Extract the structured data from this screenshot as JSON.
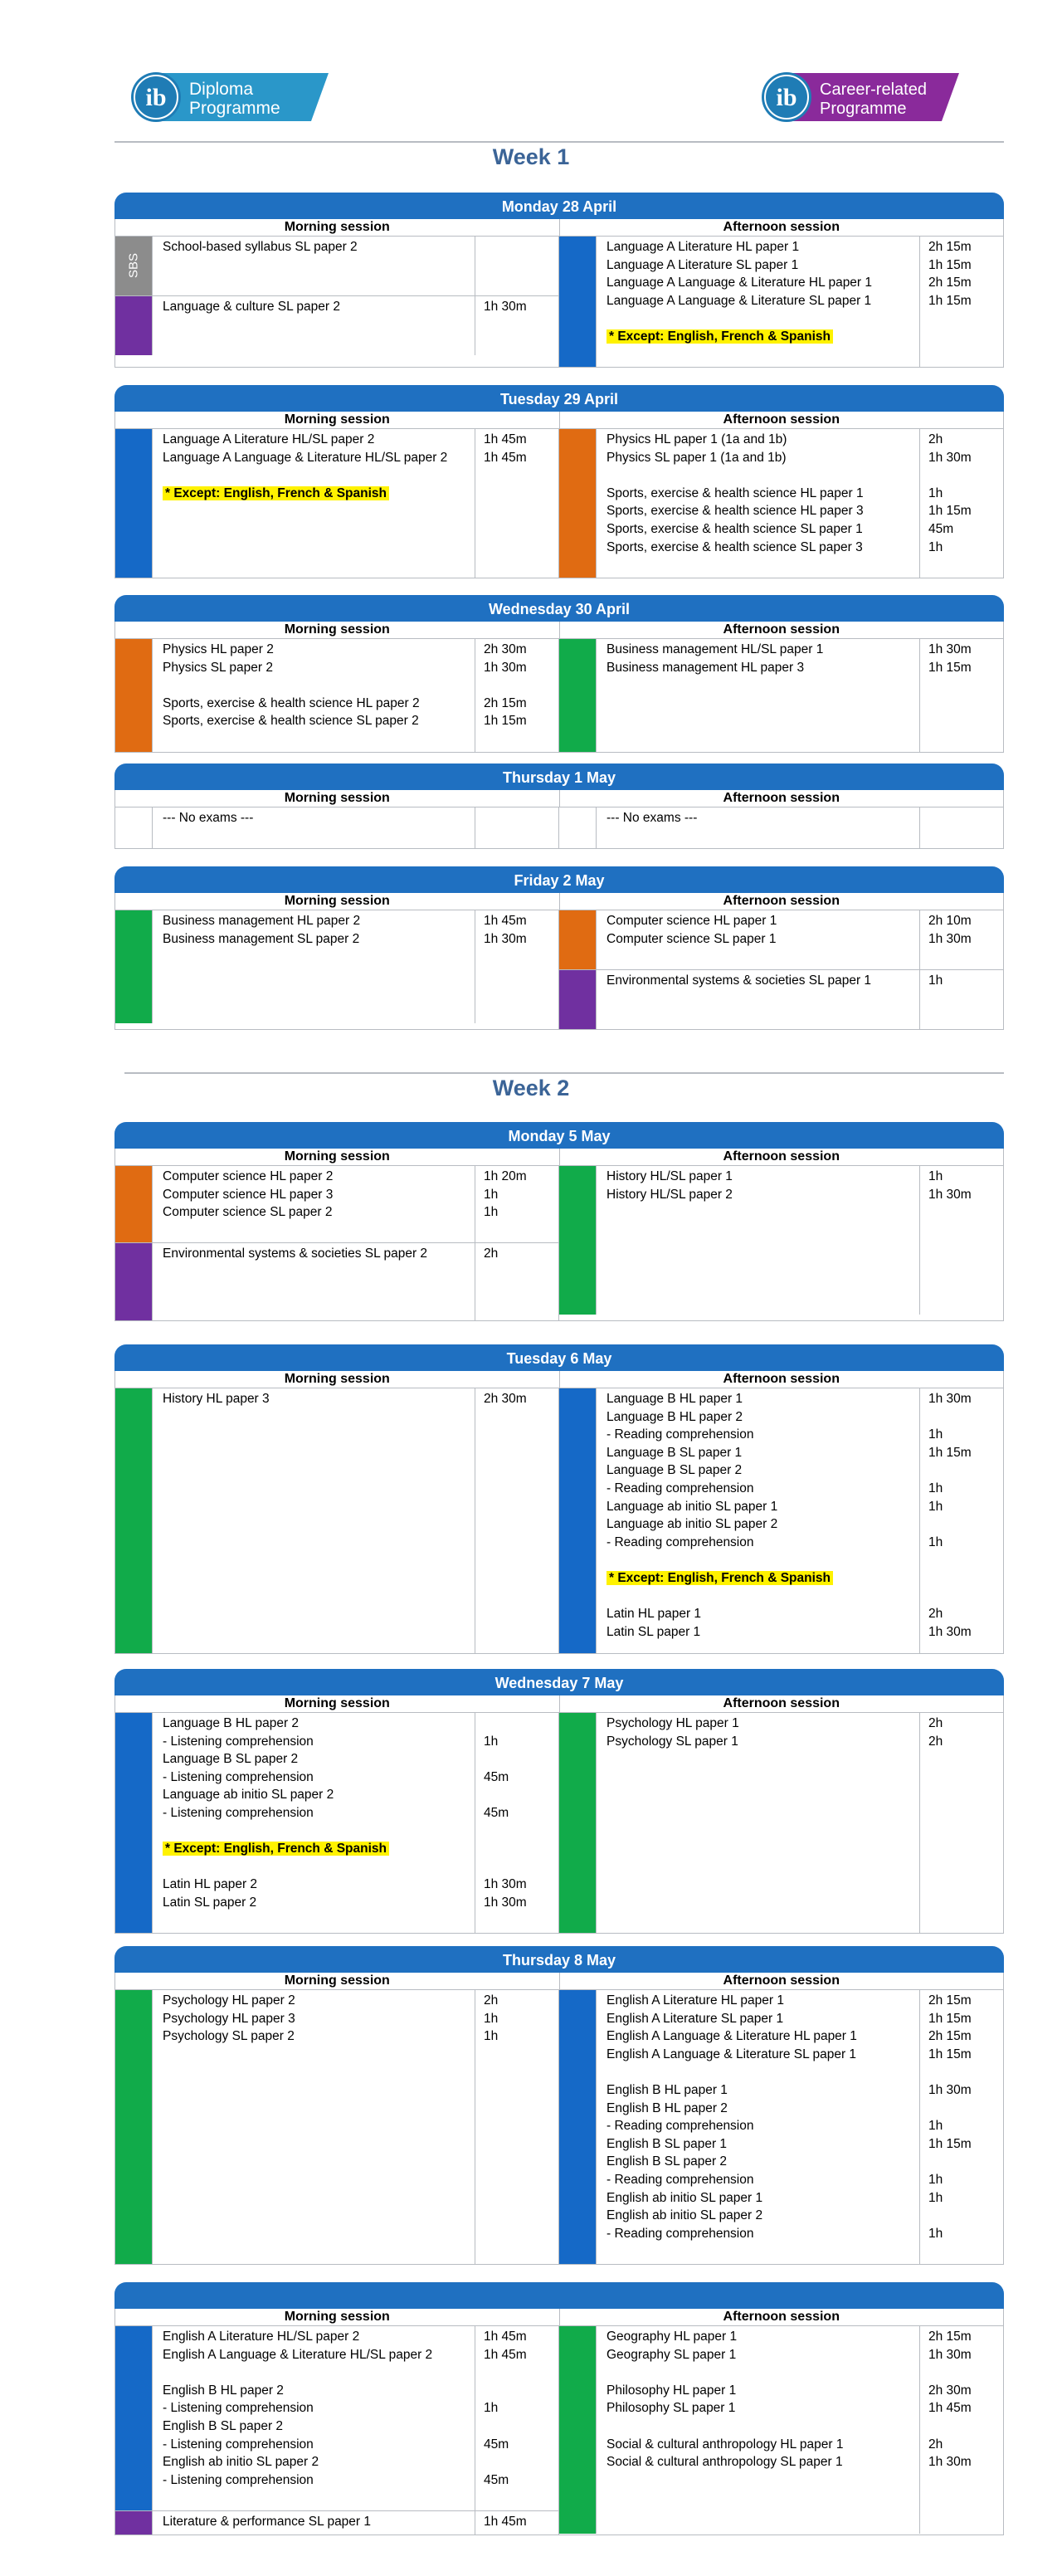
{
  "logos": {
    "dp": {
      "line1": "Diploma",
      "line2": "Programme",
      "mark": "ib"
    },
    "cp": {
      "line1": "Career-related",
      "line2": "Programme",
      "mark": "ib"
    }
  },
  "sessions": {
    "morning": "Morning session",
    "afternoon": "Afternoon session"
  },
  "weeks": [
    {
      "title": "Week 1"
    },
    {
      "title": "Week 2"
    }
  ],
  "days": [
    {
      "title": "Monday 28 April",
      "morning": [
        {
          "color": "grey",
          "label": "SBS",
          "rows": [
            [
              "School-based syllabus SL paper 2",
              ""
            ]
          ],
          "min_rows": 3
        },
        {
          "color": "purple",
          "rows": [
            [
              "Language & culture SL paper 2",
              "1h 30m"
            ]
          ],
          "min_rows": 3
        }
      ],
      "afternoon": [
        {
          "color": "blue",
          "rows": [
            [
              "Language A Literature HL paper 1",
              "2h 15m"
            ],
            [
              "Language A Literature SL paper 1",
              "1h 15m"
            ],
            [
              "Language A Language & Literature HL paper 1",
              "2h 15m"
            ],
            [
              "Language A Language & Literature SL paper 1",
              "1h 15m"
            ],
            [
              "",
              ""
            ],
            [
              "* Except: English, French & Spanish",
              "",
              "hl"
            ]
          ],
          "min_rows": 7
        }
      ]
    },
    {
      "title": "Tuesday 29 April",
      "morning": [
        {
          "color": "blue",
          "rows": [
            [
              "Language A Literature HL/SL paper 2",
              "1h 45m"
            ],
            [
              "Language A Language & Literature HL/SL paper 2",
              "1h 45m"
            ],
            [
              "",
              ""
            ],
            [
              "* Except: English, French & Spanish",
              "",
              "hl"
            ]
          ],
          "min_rows": 8
        }
      ],
      "afternoon": [
        {
          "color": "orange",
          "rows": [
            [
              "Physics HL paper 1 (1a and 1b)",
              "2h"
            ],
            [
              "Physics SL paper 1 (1a and 1b)",
              "1h 30m"
            ],
            [
              "",
              ""
            ],
            [
              "Sports, exercise & health science HL paper 1",
              "1h"
            ],
            [
              "Sports, exercise & health science HL paper 3",
              "1h 15m"
            ],
            [
              "Sports, exercise & health science SL paper 1",
              "45m"
            ],
            [
              "Sports, exercise & health science SL paper 3",
              "1h"
            ]
          ],
          "min_rows": 8
        }
      ]
    },
    {
      "title": "Wednesday 30 April",
      "morning": [
        {
          "color": "orange",
          "rows": [
            [
              "Physics HL paper 2",
              "2h 30m"
            ],
            [
              "Physics SL paper 2",
              "1h 30m"
            ],
            [
              "",
              ""
            ],
            [
              "Sports, exercise & health science HL paper 2",
              "2h 15m"
            ],
            [
              "Sports, exercise & health science SL paper 2",
              "1h 15m"
            ]
          ],
          "min_rows": 6
        }
      ],
      "afternoon": [
        {
          "color": "green",
          "rows": [
            [
              "Business management HL/SL paper 1",
              "1h 30m"
            ],
            [
              "Business management HL paper 3",
              "1h 15m"
            ]
          ],
          "min_rows": 6
        }
      ]
    },
    {
      "title": "Thursday 1 May",
      "morning": [
        {
          "color": "none",
          "rows": [
            [
              "--- No exams ---",
              ""
            ]
          ],
          "min_rows": 2
        }
      ],
      "afternoon": [
        {
          "color": "none",
          "rows": [
            [
              "--- No exams ---",
              ""
            ]
          ],
          "min_rows": 2
        }
      ]
    },
    {
      "title": "Friday 2 May",
      "morning": [
        {
          "color": "green",
          "rows": [
            [
              "Business management HL paper 2",
              "1h 45m"
            ],
            [
              "Business management SL paper 2",
              "1h 30m"
            ]
          ],
          "min_rows": 6
        }
      ],
      "afternoon": [
        {
          "color": "orange",
          "rows": [
            [
              "Computer science HL paper 1",
              "2h 10m"
            ],
            [
              "Computer science SL paper 1",
              "1h 30m"
            ]
          ],
          "min_rows": 3
        },
        {
          "color": "purple",
          "rows": [
            [
              "Environmental systems & societies SL paper 1",
              "1h"
            ]
          ],
          "min_rows": 3
        }
      ]
    },
    {
      "title": "Monday 5 May",
      "morning": [
        {
          "color": "orange",
          "rows": [
            [
              "Computer science HL paper 2",
              "1h 20m"
            ],
            [
              "Computer science HL paper 3",
              "1h"
            ],
            [
              "Computer science SL paper 2",
              "1h"
            ]
          ],
          "min_rows": 4
        },
        {
          "color": "purple",
          "rows": [
            [
              "Environmental systems & societies SL paper 2",
              "2h"
            ]
          ],
          "min_rows": 4
        }
      ],
      "afternoon": [
        {
          "color": "green",
          "rows": [
            [
              "History HL/SL paper 1",
              "1h"
            ],
            [
              "History HL/SL paper 2",
              "1h 30m"
            ]
          ],
          "min_rows": 8
        }
      ]
    },
    {
      "title": "Tuesday 6 May",
      "morning": [
        {
          "color": "green",
          "rows": [
            [
              "History HL paper 3",
              "2h 30m"
            ]
          ],
          "min_rows": 14.5
        }
      ],
      "afternoon": [
        {
          "color": "blue",
          "rows": [
            [
              "Language B HL paper 1",
              "1h 30m"
            ],
            [
              "Language B HL paper 2",
              ""
            ],
            [
              "- Reading comprehension",
              "1h"
            ],
            [
              "Language B SL paper 1",
              "1h 15m"
            ],
            [
              "Language B SL paper 2",
              ""
            ],
            [
              "- Reading comprehension",
              "1h"
            ],
            [
              "Language ab initio SL paper 1",
              "1h"
            ],
            [
              "Language ab initio SL paper 2",
              ""
            ],
            [
              "- Reading comprehension",
              "1h"
            ],
            [
              "",
              ""
            ],
            [
              "* Except: English, French & Spanish",
              "",
              "hl"
            ],
            [
              "",
              ""
            ],
            [
              "Latin HL paper 1",
              "2h"
            ],
            [
              "Latin SL paper 1",
              "1h 30m"
            ]
          ],
          "min_rows": 14.5
        }
      ]
    },
    {
      "title": "Wednesday 7 May",
      "morning": [
        {
          "color": "blue",
          "rows": [
            [
              "Language B HL paper 2",
              ""
            ],
            [
              "- Listening comprehension",
              "1h"
            ],
            [
              "Language B SL paper 2",
              ""
            ],
            [
              "- Listening comprehension",
              "45m"
            ],
            [
              "Language ab initio SL paper 2",
              ""
            ],
            [
              "- Listening comprehension",
              "45m"
            ],
            [
              "",
              ""
            ],
            [
              "* Except: English, French & Spanish",
              "",
              "hl"
            ],
            [
              "",
              ""
            ],
            [
              "Latin HL paper 2",
              "1h 30m"
            ],
            [
              "Latin SL paper 2",
              "1h 30m"
            ]
          ],
          "min_rows": 12
        }
      ],
      "afternoon": [
        {
          "color": "green",
          "rows": [
            [
              "Psychology HL paper 1",
              "2h"
            ],
            [
              "Psychology SL paper 1",
              "2h"
            ]
          ],
          "min_rows": 12
        }
      ]
    },
    {
      "title": "Thursday 8 May",
      "morning": [
        {
          "color": "green",
          "rows": [
            [
              "Psychology HL paper 2",
              "2h"
            ],
            [
              "Psychology HL paper 3",
              "1h"
            ],
            [
              "Psychology SL paper 2",
              "1h"
            ]
          ],
          "min_rows": 15
        }
      ],
      "afternoon": [
        {
          "color": "blue",
          "rows": [
            [
              "English A Literature HL paper 1",
              "2h 15m"
            ],
            [
              "English A Literature SL paper 1",
              "1h 15m"
            ],
            [
              "English A Language & Literature HL paper 1",
              "2h 15m"
            ],
            [
              "English A Language & Literature SL paper 1",
              "1h 15m"
            ],
            [
              "",
              ""
            ],
            [
              "English B HL paper 1",
              "1h 30m"
            ],
            [
              "English B HL paper 2",
              ""
            ],
            [
              "- Reading comprehension",
              "1h"
            ],
            [
              "English B SL paper 1",
              "1h 15m"
            ],
            [
              "English B SL paper 2",
              ""
            ],
            [
              "- Reading comprehension",
              "1h"
            ],
            [
              "English ab initio SL paper 1",
              "1h"
            ],
            [
              "English ab initio SL paper 2",
              ""
            ],
            [
              "- Reading comprehension",
              "1h"
            ]
          ],
          "min_rows": 15
        }
      ]
    },
    {
      "title": "",
      "morning": [
        {
          "color": "blue",
          "rows": [
            [
              "English A Literature HL/SL paper 2",
              "1h 45m"
            ],
            [
              "English A Language & Literature HL/SL paper 2",
              "1h 45m"
            ],
            [
              "",
              ""
            ],
            [
              "English B HL paper 2",
              ""
            ],
            [
              "- Listening comprehension",
              "1h"
            ],
            [
              "English B SL paper 2",
              ""
            ],
            [
              "- Listening comprehension",
              "45m"
            ],
            [
              "English ab initio SL paper 2",
              ""
            ],
            [
              "- Listening comprehension",
              "45m"
            ]
          ],
          "min_rows": 10
        },
        {
          "color": "purple",
          "rows": [
            [
              "Literature & performance SL paper 1",
              "1h 45m"
            ]
          ],
          "min_rows": 1
        }
      ],
      "afternoon": [
        {
          "color": "green",
          "rows": [
            [
              "Geography HL paper 1",
              "2h 15m"
            ],
            [
              "Geography SL paper 1",
              "1h 30m"
            ],
            [
              "",
              ""
            ],
            [
              "Philosophy HL paper 1",
              "2h 30m"
            ],
            [
              "Philosophy SL paper 1",
              "1h 45m"
            ],
            [
              "",
              ""
            ],
            [
              "Social & cultural anthropology HL paper 1",
              "2h"
            ],
            [
              "Social & cultural anthropology SL paper 1",
              "1h 30m"
            ]
          ],
          "min_rows": 11.3
        }
      ]
    }
  ]
}
